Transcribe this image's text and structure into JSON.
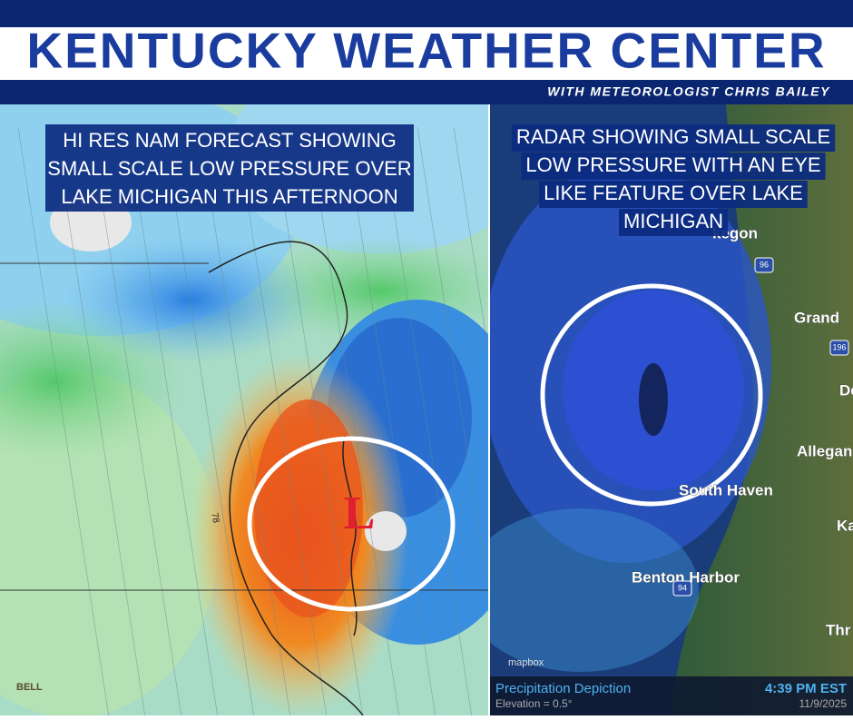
{
  "header": {
    "title": "KENTUCKY WEATHER CENTER",
    "subtitle": "WITH METEOROLOGIST CHRIS BAILEY"
  },
  "left_panel": {
    "caption": [
      "HI RES NAM FORECAST SHOWING",
      "SMALL SCALE LOW PRESSURE OVER",
      "LAKE MICHIGAN THIS AFTERNOON"
    ],
    "low_label": "L",
    "contour_label": "78",
    "logo": "BELL"
  },
  "right_panel": {
    "caption": [
      "RADAR SHOWING SMALL SCALE",
      "LOW PRESSURE WITH AN EYE",
      "LIKE FEATURE OVER LAKE",
      "MICHIGAN"
    ],
    "places": [
      "kegon",
      "Grand",
      "De",
      "Allegan",
      "South Haven",
      "Ka",
      "Benton Harbor",
      "Thr"
    ],
    "shields": [
      "96",
      "196",
      "94"
    ],
    "credit": "mapbox",
    "footer": {
      "product": "Precipitation Depiction",
      "elevation": "Elevation = 0.5°",
      "time": "4:39 PM EST",
      "date": "11/9/2025"
    }
  }
}
